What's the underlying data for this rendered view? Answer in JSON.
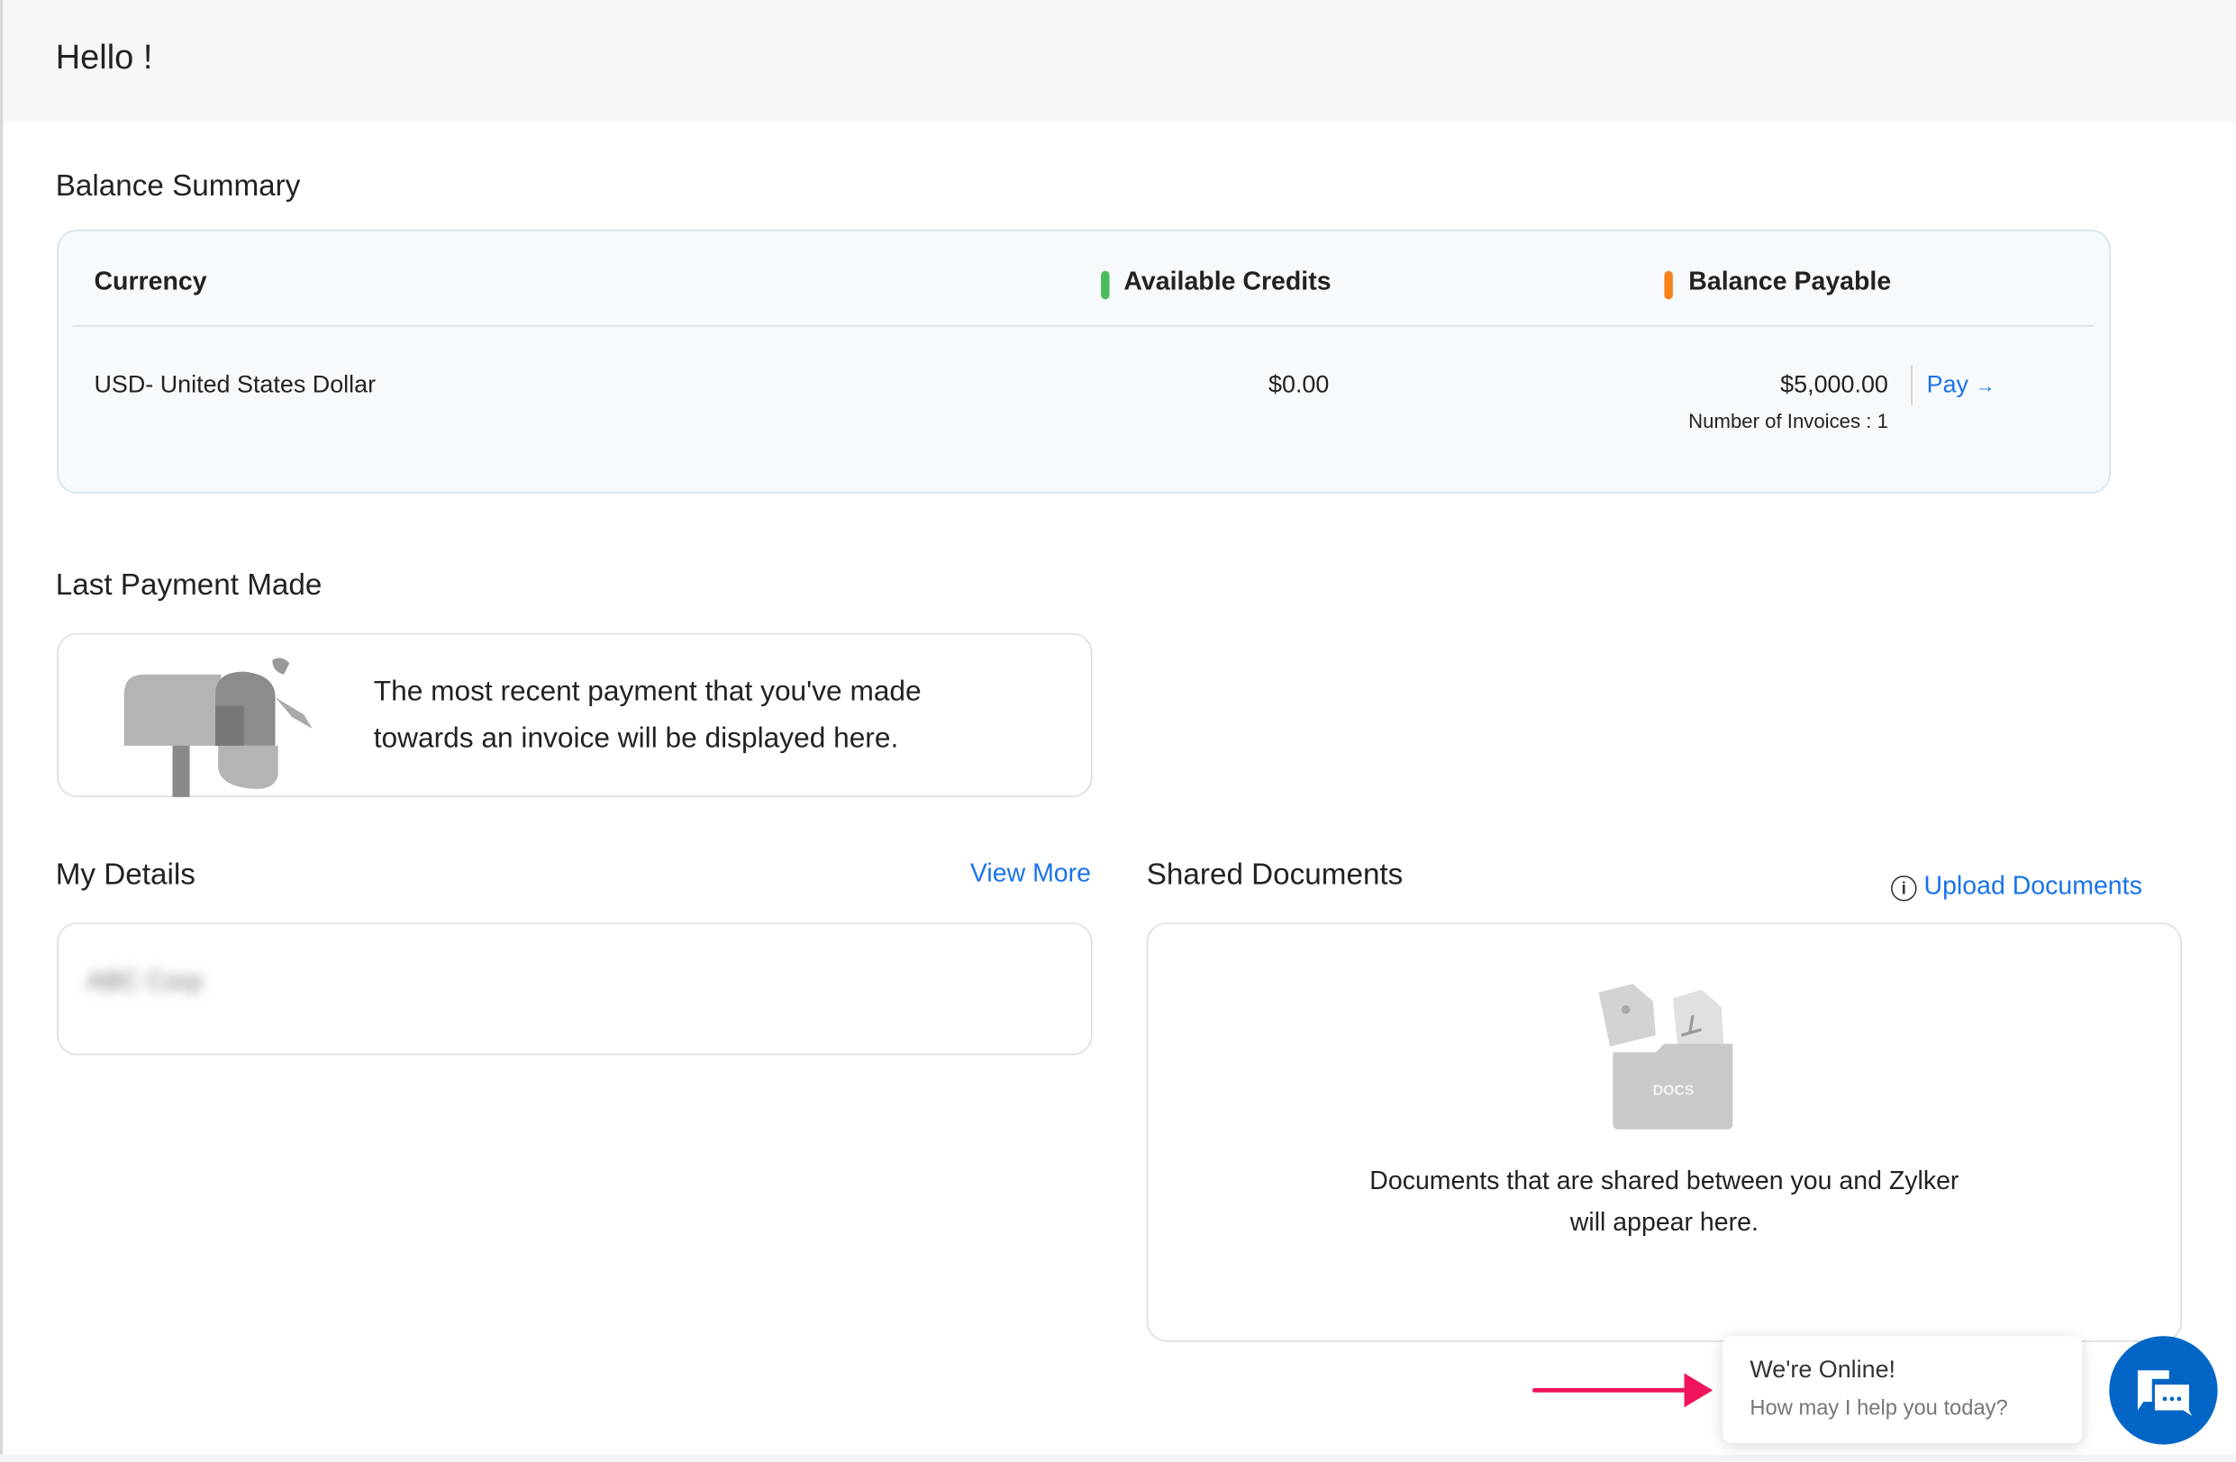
{
  "header": {
    "greeting": "Hello !"
  },
  "balance_summary": {
    "title": "Balance Summary",
    "columns": {
      "currency": "Currency",
      "available_credits": "Available Credits",
      "balance_payable": "Balance Payable"
    },
    "rows": [
      {
        "currency": "USD- United States Dollar",
        "available_credits": "$0.00",
        "balance_payable": "$5,000.00",
        "pay_label": "Pay",
        "invoices": "Number of Invoices : 1"
      }
    ],
    "colors": {
      "credits": "#4cbb5c",
      "payable": "#f7821b"
    }
  },
  "last_payment": {
    "title": "Last Payment Made",
    "message_line1": "The most recent payment that you've made",
    "message_line2": "towards an invoice will be displayed here."
  },
  "my_details": {
    "title": "My Details",
    "view_more": "View More",
    "blurred_name": "ABC Corp"
  },
  "shared_documents": {
    "title": "Shared Documents",
    "upload_label": "Upload Documents",
    "docs_badge": "DOCS",
    "empty_line1": "Documents that are shared between you and Zylker",
    "empty_line2": "will appear here."
  },
  "chat": {
    "title": "We're Online!",
    "subtitle": "How may I help you today?",
    "accent": "#0366c6",
    "arrow_color": "#f0145a"
  }
}
